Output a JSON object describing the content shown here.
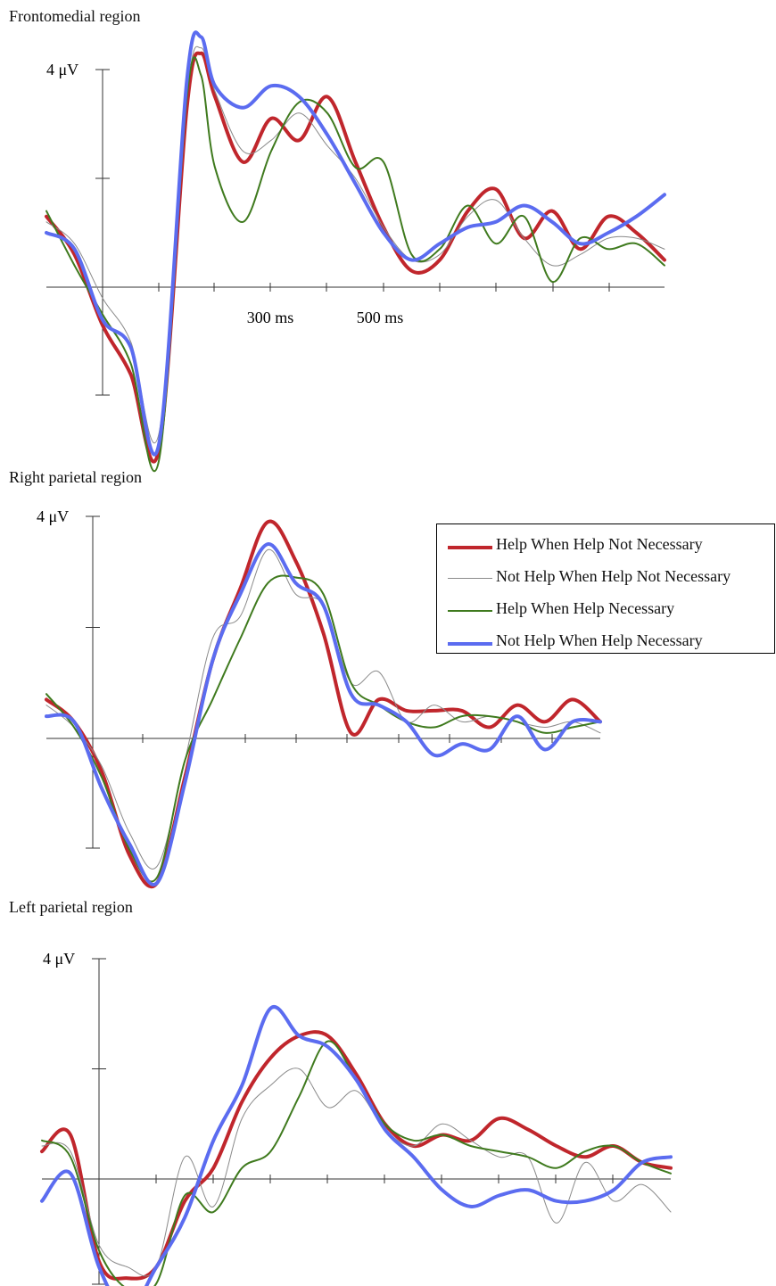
{
  "panels": [
    {
      "title": "Frontomedial region"
    },
    {
      "title": "Right parietal region"
    },
    {
      "title": "Left parietal region"
    }
  ],
  "legend": [
    {
      "label": "Help When Help Not Necessary",
      "color": "#c0262c"
    },
    {
      "label": "Not Help When Help Not Necessary",
      "color": "#8a8a8a"
    },
    {
      "label": "Help When Help Necessary",
      "color": "#3f7a1e"
    },
    {
      "label": "Not Help When Help Necessary",
      "color": "#5b6cf0"
    }
  ],
  "chart_data": [
    {
      "type": "line",
      "title": "Frontomedial region",
      "ylabel": "4 μV",
      "tick_labels": [
        "300 ms",
        "500 ms"
      ],
      "xlim": [
        -100,
        1000
      ],
      "ylim": [
        -2,
        4
      ],
      "series": [
        {
          "name": "Help When Help Not Necessary",
          "x": [
            -100,
            -50,
            0,
            50,
            100,
            150,
            175,
            200,
            250,
            300,
            350,
            400,
            450,
            500,
            550,
            600,
            650,
            700,
            750,
            800,
            850,
            900,
            950,
            1000
          ],
          "values": [
            1.3,
            0.6,
            -0.7,
            -1.6,
            -3.0,
            3.3,
            4.3,
            3.5,
            2.3,
            3.1,
            2.7,
            3.5,
            2.3,
            1.1,
            0.3,
            0.5,
            1.4,
            1.8,
            0.9,
            1.4,
            0.7,
            1.3,
            1.0,
            0.5
          ]
        },
        {
          "name": "Not Help When Help Not Necessary",
          "x": [
            -100,
            -50,
            0,
            50,
            100,
            150,
            175,
            200,
            250,
            300,
            350,
            400,
            450,
            500,
            550,
            600,
            650,
            700,
            750,
            800,
            850,
            900,
            950,
            1000
          ],
          "values": [
            1.2,
            0.8,
            -0.2,
            -1.0,
            -2.7,
            3.5,
            4.4,
            3.6,
            2.5,
            2.7,
            3.2,
            2.6,
            2.0,
            1.1,
            0.5,
            0.6,
            1.3,
            1.6,
            0.9,
            0.4,
            0.6,
            0.9,
            0.9,
            0.7
          ]
        },
        {
          "name": "Help When Help Necessary",
          "x": [
            -100,
            -50,
            0,
            50,
            100,
            150,
            175,
            200,
            250,
            300,
            350,
            400,
            450,
            500,
            550,
            600,
            650,
            700,
            750,
            800,
            850,
            900,
            950,
            1000
          ],
          "values": [
            1.4,
            0.4,
            -0.5,
            -1.4,
            -3.2,
            3.5,
            3.9,
            2.2,
            1.2,
            2.5,
            3.4,
            3.2,
            2.2,
            2.3,
            0.6,
            0.7,
            1.5,
            0.8,
            1.3,
            0.1,
            0.9,
            0.7,
            0.8,
            0.4
          ]
        },
        {
          "name": "Not Help When Help Necessary",
          "x": [
            -100,
            -50,
            0,
            50,
            100,
            150,
            175,
            200,
            250,
            300,
            350,
            400,
            450,
            500,
            550,
            600,
            650,
            700,
            750,
            800,
            850,
            900,
            950,
            1000
          ],
          "values": [
            1.0,
            0.7,
            -0.6,
            -1.1,
            -2.9,
            3.8,
            4.6,
            3.7,
            3.3,
            3.7,
            3.5,
            2.8,
            1.9,
            1.0,
            0.5,
            0.8,
            1.1,
            1.2,
            1.5,
            1.2,
            0.8,
            1.0,
            1.3,
            1.7
          ]
        }
      ]
    },
    {
      "type": "line",
      "title": "Right parietal region",
      "ylabel": "4 μV",
      "tick_labels": [],
      "xlim": [
        -100,
        900
      ],
      "ylim": [
        -2,
        4
      ],
      "series": [
        {
          "name": "Help When Help Not Necessary",
          "x": [
            -100,
            -50,
            0,
            50,
            100,
            150,
            200,
            250,
            300,
            350,
            400,
            450,
            500,
            550,
            600,
            650,
            700,
            750,
            800,
            850,
            900
          ],
          "values": [
            0.7,
            0.3,
            -0.6,
            -2.1,
            -2.6,
            -0.7,
            1.4,
            2.7,
            3.9,
            3.2,
            1.9,
            0.1,
            0.7,
            0.5,
            0.5,
            0.5,
            0.2,
            0.6,
            0.3,
            0.7,
            0.3
          ]
        },
        {
          "name": "Not Help When Help Not Necessary",
          "x": [
            -100,
            -50,
            0,
            50,
            100,
            150,
            200,
            250,
            300,
            350,
            400,
            450,
            500,
            550,
            600,
            650,
            700,
            750,
            800,
            850,
            900
          ],
          "values": [
            0.6,
            0.2,
            -0.5,
            -1.7,
            -2.3,
            -0.4,
            1.8,
            2.2,
            3.4,
            2.6,
            2.4,
            1.0,
            1.2,
            0.3,
            0.6,
            0.3,
            0.4,
            0.3,
            0.2,
            0.3,
            0.1
          ]
        },
        {
          "name": "Help When Help Necessary",
          "x": [
            -100,
            -50,
            0,
            50,
            100,
            150,
            200,
            250,
            300,
            350,
            400,
            450,
            500,
            550,
            600,
            650,
            700,
            750,
            800,
            850,
            900
          ],
          "values": [
            0.8,
            0.2,
            -0.7,
            -2.0,
            -2.5,
            -0.4,
            0.7,
            1.8,
            2.8,
            2.9,
            2.6,
            1.0,
            0.6,
            0.3,
            0.2,
            0.4,
            0.4,
            0.3,
            0.1,
            0.2,
            0.3
          ]
        },
        {
          "name": "Not Help When Help Necessary",
          "x": [
            -100,
            -50,
            0,
            50,
            100,
            150,
            200,
            250,
            300,
            350,
            400,
            450,
            500,
            550,
            600,
            650,
            700,
            750,
            800,
            850,
            900
          ],
          "values": [
            0.4,
            0.3,
            -0.9,
            -1.9,
            -2.6,
            -0.8,
            1.4,
            2.6,
            3.5,
            2.8,
            2.4,
            0.8,
            0.6,
            0.3,
            -0.3,
            -0.1,
            -0.2,
            0.4,
            -0.2,
            0.3,
            0.3
          ]
        }
      ]
    },
    {
      "type": "line",
      "title": "Left parietal region",
      "ylabel": "4 μV",
      "tick_labels": [],
      "xlim": [
        -100,
        1000
      ],
      "ylim": [
        -2,
        4
      ],
      "series": [
        {
          "name": "Help When Help Not Necessary",
          "x": [
            -100,
            -50,
            0,
            50,
            100,
            150,
            200,
            250,
            300,
            350,
            400,
            450,
            500,
            550,
            600,
            650,
            700,
            750,
            800,
            850,
            900,
            950,
            1000
          ],
          "values": [
            0.5,
            0.8,
            -1.5,
            -1.8,
            -1.6,
            -0.4,
            0.2,
            1.4,
            2.2,
            2.6,
            2.6,
            1.9,
            1.0,
            0.6,
            0.8,
            0.7,
            1.1,
            0.9,
            0.6,
            0.4,
            0.6,
            0.3,
            0.2
          ]
        },
        {
          "name": "Not Help When Help Not Necessary",
          "x": [
            -100,
            -50,
            0,
            50,
            100,
            150,
            200,
            250,
            300,
            350,
            400,
            450,
            500,
            550,
            600,
            650,
            700,
            750,
            800,
            850,
            900,
            950,
            1000
          ],
          "values": [
            0.6,
            0.5,
            -1.2,
            -1.6,
            -1.6,
            0.4,
            -0.5,
            1.1,
            1.7,
            2.0,
            1.3,
            1.6,
            0.9,
            0.6,
            1.0,
            0.7,
            0.4,
            0.4,
            -0.8,
            0.3,
            -0.4,
            -0.1,
            -0.6
          ]
        },
        {
          "name": "Help When Help Necessary",
          "x": [
            -100,
            -50,
            0,
            50,
            100,
            150,
            200,
            250,
            300,
            350,
            400,
            450,
            500,
            550,
            600,
            650,
            700,
            750,
            800,
            850,
            900,
            950,
            1000
          ],
          "values": [
            0.7,
            0.4,
            -1.3,
            -2.0,
            -1.9,
            -0.3,
            -0.6,
            0.2,
            0.5,
            1.5,
            2.5,
            1.8,
            1.0,
            0.7,
            0.8,
            0.6,
            0.5,
            0.4,
            0.2,
            0.5,
            0.6,
            0.3,
            0.1
          ]
        },
        {
          "name": "Not Help When Help Necessary",
          "x": [
            -100,
            -50,
            0,
            50,
            100,
            150,
            200,
            250,
            300,
            350,
            400,
            450,
            500,
            550,
            600,
            650,
            700,
            750,
            800,
            850,
            900,
            950,
            1000
          ],
          "values": [
            -0.4,
            0.1,
            -1.6,
            -2.4,
            -1.6,
            -0.7,
            0.7,
            1.7,
            3.1,
            2.6,
            2.4,
            1.8,
            0.9,
            0.4,
            -0.2,
            -0.5,
            -0.3,
            -0.2,
            -0.4,
            -0.4,
            -0.2,
            0.3,
            0.4
          ]
        }
      ]
    }
  ]
}
